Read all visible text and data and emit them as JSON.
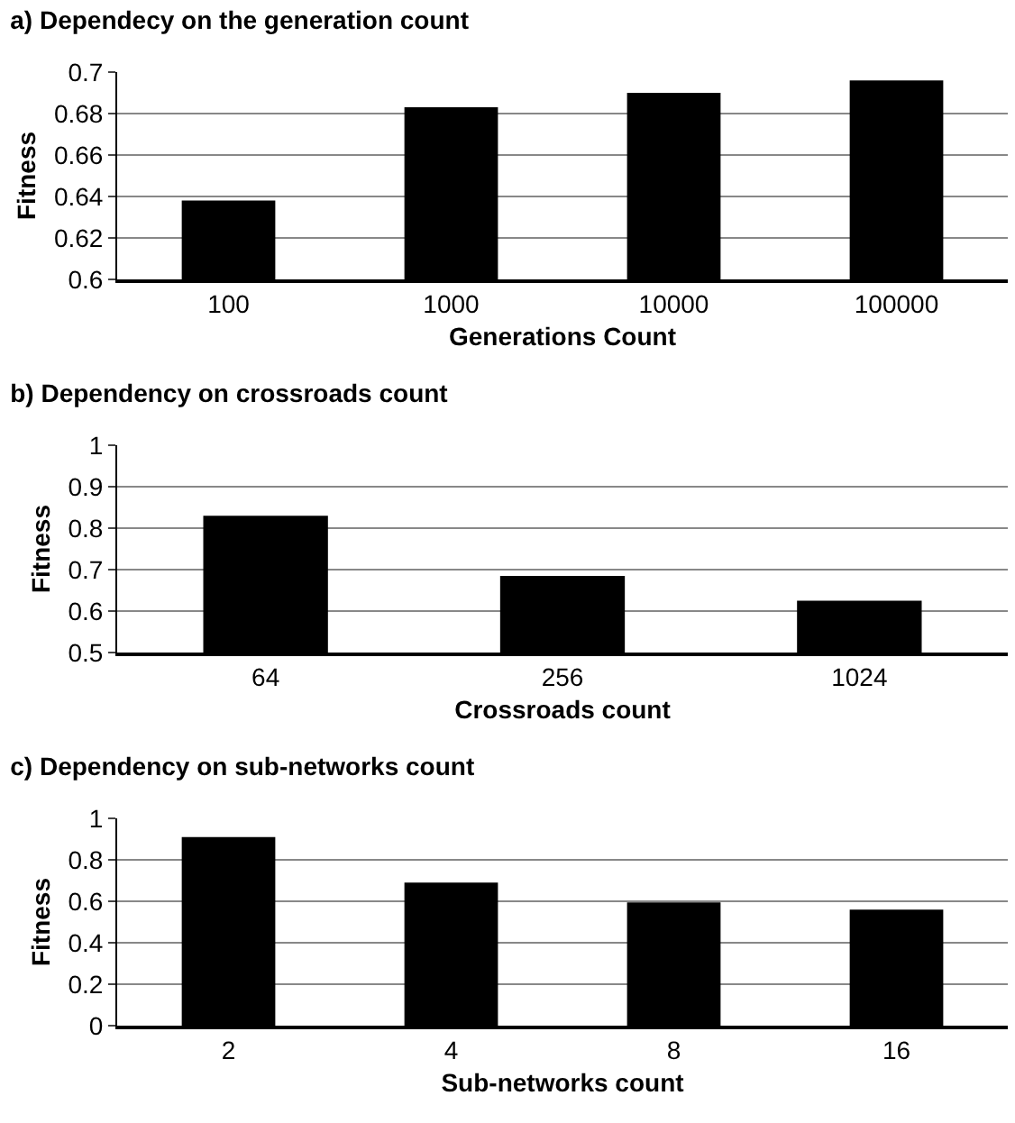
{
  "chart_data": [
    {
      "type": "bar",
      "title": "a) Dependecy on the generation count",
      "xlabel": "Generations Count",
      "ylabel": "Fitness",
      "categories": [
        "100",
        "1000",
        "10000",
        "100000"
      ],
      "values": [
        0.638,
        0.683,
        0.69,
        0.696
      ],
      "color": "#000000",
      "ylim": [
        0.6,
        0.7
      ],
      "yticks": [
        0.6,
        0.62,
        0.64,
        0.66,
        0.68,
        0.7
      ],
      "grid": "y"
    },
    {
      "type": "bar",
      "title": "b) Dependency on crossroads count",
      "xlabel": "Crossroads count",
      "ylabel": "Fitness",
      "categories": [
        "64",
        "256",
        "1024"
      ],
      "values": [
        0.83,
        0.685,
        0.625
      ],
      "color": "#000000",
      "ylim": [
        0.5,
        1
      ],
      "yticks": [
        0.5,
        0.6,
        0.7,
        0.8,
        0.9,
        1
      ],
      "grid": "y"
    },
    {
      "type": "bar",
      "title": "c) Dependency on sub-networks count",
      "xlabel": "Sub-networks count",
      "ylabel": "Fitness",
      "categories": [
        "2",
        "4",
        "8",
        "16"
      ],
      "values": [
        0.91,
        0.69,
        0.595,
        0.56
      ],
      "color": "#000000",
      "ylim": [
        0,
        1
      ],
      "yticks": [
        0,
        0.2,
        0.4,
        0.6,
        0.8,
        1
      ],
      "grid": "y"
    }
  ]
}
